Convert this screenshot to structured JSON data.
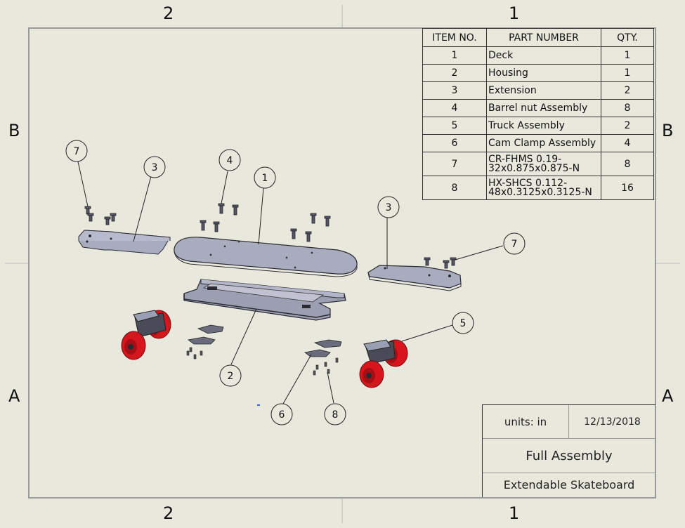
{
  "zones": {
    "top": [
      "2",
      "1"
    ],
    "bottom": [
      "2",
      "1"
    ],
    "left": [
      "B",
      "A"
    ],
    "right": [
      "B",
      "A"
    ]
  },
  "bom": {
    "headers": [
      "ITEM NO.",
      "PART NUMBER",
      "QTY."
    ],
    "rows": [
      {
        "item": "1",
        "part": "Deck",
        "qty": "1"
      },
      {
        "item": "2",
        "part": "Housing",
        "qty": "1"
      },
      {
        "item": "3",
        "part": "Extension",
        "qty": "2"
      },
      {
        "item": "4",
        "part": "Barrel nut Assembly",
        "qty": "8"
      },
      {
        "item": "5",
        "part": "Truck Assembly",
        "qty": "2"
      },
      {
        "item": "6",
        "part": "Cam Clamp Assembly",
        "qty": "4"
      },
      {
        "item": "7",
        "part": "CR-FHMS 0.19-32x0.875x0.875-N",
        "part_lines": [
          "CR-FHMS 0.19-",
          "32x0.875x0.875-N"
        ],
        "qty": "8"
      },
      {
        "item": "8",
        "part": "HX-SHCS 0.112-48x0.3125x0.3125-N",
        "part_lines": [
          "HX-SHCS 0.112-",
          "48x0.3125x0.3125-N"
        ],
        "qty": "16"
      }
    ]
  },
  "title_block": {
    "units": "units: in",
    "date": "12/13/2018",
    "title": "Full Assembly",
    "project": "Extendable Skateboard"
  },
  "balloons": [
    "7",
    "3",
    "4",
    "1",
    "3",
    "7",
    "5",
    "2",
    "6",
    "8"
  ],
  "colors": {
    "sheet": "#e9e8dd",
    "part_fill": "#a9abbe",
    "part_edge": "#2a2a33",
    "wheel": "#d8151c",
    "line": "#333333"
  }
}
